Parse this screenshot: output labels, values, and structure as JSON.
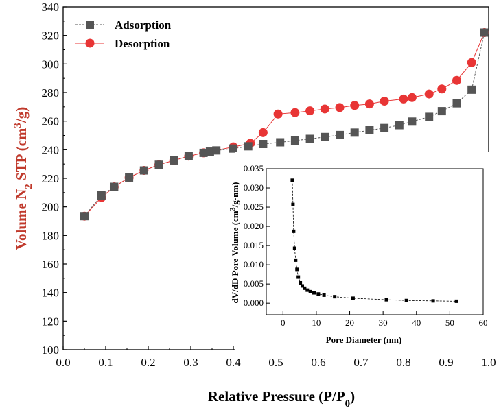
{
  "chart_data": [
    {
      "type": "line",
      "title": "",
      "xlabel": "Relative Pressure (P/P0)",
      "ylabel": "Volume N2 STP (cm3/g)",
      "xlim": [
        0.0,
        1.0
      ],
      "ylim": [
        100,
        340
      ],
      "x_ticks": [
        "0.0",
        "0.1",
        "0.2",
        "0.3",
        "0.4",
        "0.5",
        "0.6",
        "0.7",
        "0.8",
        "0.9",
        "1.0"
      ],
      "y_ticks": [
        "100",
        "120",
        "140",
        "160",
        "180",
        "200",
        "220",
        "240",
        "260",
        "280",
        "300",
        "320",
        "340"
      ],
      "legend": "top-left",
      "grid": false,
      "series": [
        {
          "name": "Adsorption",
          "color": "#555555",
          "marker": "square",
          "x": [
            0.05,
            0.09,
            0.12,
            0.155,
            0.19,
            0.225,
            0.26,
            0.295,
            0.33,
            0.345,
            0.36,
            0.4,
            0.435,
            0.47,
            0.51,
            0.545,
            0.58,
            0.615,
            0.65,
            0.685,
            0.72,
            0.755,
            0.79,
            0.82,
            0.86,
            0.89,
            0.925,
            0.96,
            0.99
          ],
          "y": [
            193.5,
            208,
            214,
            220.5,
            225.5,
            229.5,
            232.5,
            235.5,
            237.8,
            238.7,
            239.5,
            240.8,
            242.4,
            244,
            245.2,
            246.4,
            247.6,
            248.9,
            250.3,
            252,
            253.6,
            255.2,
            257.2,
            259.7,
            263,
            267,
            272.5,
            282,
            322
          ]
        },
        {
          "name": "Desorption",
          "color": "#e83535",
          "marker": "circle",
          "x": [
            0.99,
            0.96,
            0.925,
            0.89,
            0.86,
            0.82,
            0.8,
            0.755,
            0.72,
            0.685,
            0.65,
            0.615,
            0.58,
            0.545,
            0.505,
            0.47,
            0.44,
            0.4,
            0.33,
            0.295,
            0.26,
            0.225,
            0.19,
            0.155,
            0.12,
            0.09,
            0.05
          ],
          "y": [
            322,
            301,
            288.5,
            282.5,
            279,
            276.5,
            275.5,
            274,
            272,
            271,
            269.5,
            268.5,
            267.2,
            266,
            265,
            252,
            244.5,
            242,
            237.8,
            235.5,
            232.5,
            229.5,
            225.5,
            220.5,
            214,
            206.5,
            193.5
          ]
        }
      ]
    },
    {
      "type": "line",
      "title": "",
      "xlabel": "Pore Diameter (nm)",
      "ylabel": "dV/dD Pore Volume (cm3/g·nm)",
      "xlim": [
        -5,
        60
      ],
      "ylim": [
        -0.003,
        0.035
      ],
      "x_ticks": [
        "0",
        "10",
        "20",
        "30",
        "40",
        "50",
        "60"
      ],
      "y_ticks": [
        "0.000",
        "0.005",
        "0.010",
        "0.015",
        "0.020",
        "0.025",
        "0.030",
        "0.035"
      ],
      "series": [
        {
          "name": "",
          "color": "#000000",
          "marker": "square",
          "x": [
            2.8,
            3.0,
            3.2,
            3.5,
            3.8,
            4.2,
            4.6,
            5.2,
            5.8,
            6.5,
            7.3,
            8.2,
            9.3,
            10.6,
            12.3,
            15.5,
            21,
            31,
            37,
            45,
            52
          ],
          "y": [
            0.032,
            0.0257,
            0.0187,
            0.0143,
            0.0112,
            0.0088,
            0.0068,
            0.0053,
            0.0045,
            0.0039,
            0.0034,
            0.003,
            0.0027,
            0.0024,
            0.0021,
            0.0017,
            0.0013,
            0.0009,
            0.0007,
            0.0006,
            0.0005
          ]
        }
      ]
    }
  ]
}
